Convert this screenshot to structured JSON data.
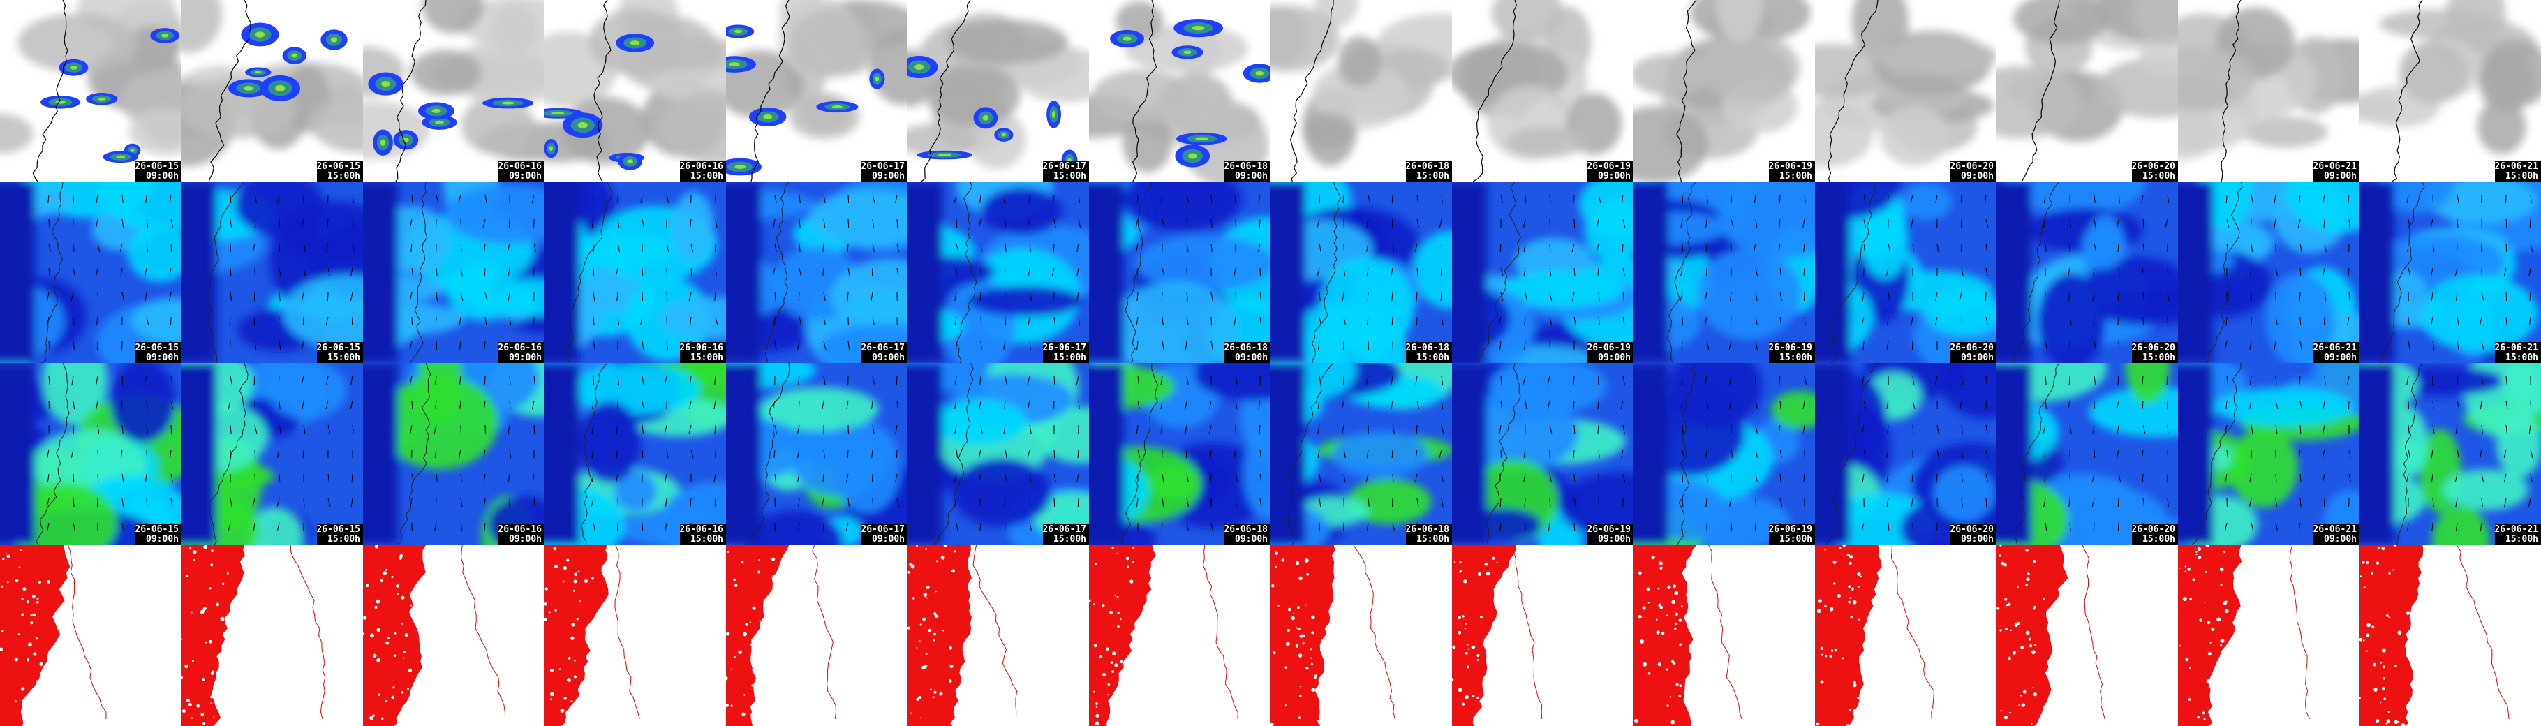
{
  "columns": [
    {
      "date": "26-06-15",
      "time": "09:00h"
    },
    {
      "date": "26-06-15",
      "time": "15:00h"
    },
    {
      "date": "26-06-16",
      "time": "09:00h"
    },
    {
      "date": "26-06-16",
      "time": "15:00h"
    },
    {
      "date": "26-06-17",
      "time": "09:00h"
    },
    {
      "date": "26-06-17",
      "time": "15:00h"
    },
    {
      "date": "26-06-18",
      "time": "09:00h"
    },
    {
      "date": "26-06-18",
      "time": "15:00h"
    },
    {
      "date": "26-06-19",
      "time": "09:00h"
    },
    {
      "date": "26-06-19",
      "time": "15:00h"
    },
    {
      "date": "26-06-20",
      "time": "09:00h"
    },
    {
      "date": "26-06-20",
      "time": "15:00h"
    },
    {
      "date": "26-06-21",
      "time": "09:00h"
    },
    {
      "date": "26-06-21",
      "time": "15:00h"
    }
  ]
}
